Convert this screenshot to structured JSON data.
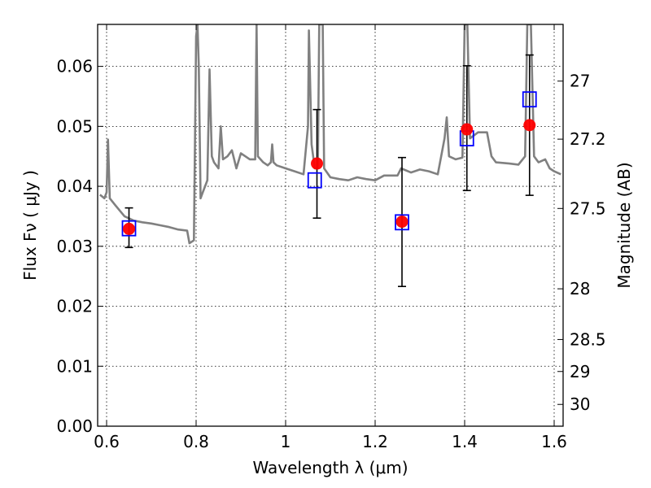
{
  "chart_data": {
    "type": "scatter",
    "xlabel": "Wavelength  λ (μm)",
    "ylabel": "Flux  Fν  ( μJy )",
    "ylabel_right": "Magnitude (AB)",
    "xlim": [
      0.58,
      1.62
    ],
    "ylim": [
      0.0,
      0.067
    ],
    "grid": true,
    "grid_style": "dotted",
    "x_ticks": [
      0.6,
      0.8,
      1.0,
      1.2,
      1.4,
      1.6
    ],
    "x_tick_labels": [
      "0.6",
      "0.8",
      "1",
      "1.2",
      "1.4",
      "1.6"
    ],
    "y_ticks": [
      0.0,
      0.01,
      0.02,
      0.03,
      0.04,
      0.05,
      0.06
    ],
    "y_tick_labels": [
      "0.00",
      "0.01",
      "0.02",
      "0.03",
      "0.04",
      "0.05",
      "0.06"
    ],
    "mag_ticks": [
      27,
      27.2,
      27.5,
      28,
      28.5,
      29,
      30
    ],
    "mag_tick_labels": [
      "27",
      "27.2",
      "27.5",
      "28",
      "28.5",
      "29",
      "30"
    ],
    "series": [
      {
        "kind": "observed",
        "color": "#ff0000",
        "points": [
          {
            "x": 0.65,
            "y": 0.0329,
            "yerr_low": 0.0298,
            "yerr_high": 0.0364
          },
          {
            "x": 1.07,
            "y": 0.0438,
            "yerr_low": 0.0347,
            "yerr_high": 0.0528
          },
          {
            "x": 1.26,
            "y": 0.0341,
            "yerr_low": 0.0233,
            "yerr_high": 0.0448
          },
          {
            "x": 1.405,
            "y": 0.0495,
            "yerr_low": 0.0393,
            "yerr_high": 0.0601
          },
          {
            "x": 1.545,
            "y": 0.0502,
            "yerr_low": 0.0385,
            "yerr_high": 0.0619
          }
        ]
      },
      {
        "kind": "model",
        "color": "#0000ff",
        "marker": "open-square",
        "points": [
          {
            "x": 0.65,
            "y": 0.033
          },
          {
            "x": 1.065,
            "y": 0.041
          },
          {
            "x": 1.26,
            "y": 0.034
          },
          {
            "x": 1.405,
            "y": 0.048
          },
          {
            "x": 1.545,
            "y": 0.0545
          }
        ]
      },
      {
        "kind": "sed",
        "color": "#808080",
        "line": [
          [
            0.585,
            0.0386
          ],
          [
            0.595,
            0.038
          ],
          [
            0.6,
            0.039
          ],
          [
            0.603,
            0.0478
          ],
          [
            0.607,
            0.038
          ],
          [
            0.62,
            0.0368
          ],
          [
            0.64,
            0.035
          ],
          [
            0.66,
            0.0343
          ],
          [
            0.68,
            0.034
          ],
          [
            0.7,
            0.0338
          ],
          [
            0.72,
            0.0335
          ],
          [
            0.74,
            0.0332
          ],
          [
            0.76,
            0.0328
          ],
          [
            0.78,
            0.0326
          ],
          [
            0.785,
            0.0305
          ],
          [
            0.795,
            0.031
          ],
          [
            0.8,
            0.065
          ],
          [
            0.803,
            0.067
          ],
          [
            0.806,
            0.06
          ],
          [
            0.81,
            0.038
          ],
          [
            0.815,
            0.039
          ],
          [
            0.82,
            0.04
          ],
          [
            0.825,
            0.041
          ],
          [
            0.83,
            0.0595
          ],
          [
            0.835,
            0.045
          ],
          [
            0.84,
            0.044
          ],
          [
            0.85,
            0.043
          ],
          [
            0.855,
            0.05
          ],
          [
            0.86,
            0.0445
          ],
          [
            0.87,
            0.045
          ],
          [
            0.88,
            0.046
          ],
          [
            0.89,
            0.043
          ],
          [
            0.9,
            0.0455
          ],
          [
            0.91,
            0.045
          ],
          [
            0.92,
            0.0445
          ],
          [
            0.932,
            0.0445
          ],
          [
            0.935,
            0.067
          ],
          [
            0.938,
            0.045
          ],
          [
            0.95,
            0.044
          ],
          [
            0.96,
            0.0435
          ],
          [
            0.967,
            0.044
          ],
          [
            0.97,
            0.047
          ],
          [
            0.973,
            0.044
          ],
          [
            0.98,
            0.0435
          ],
          [
            1.0,
            0.043
          ],
          [
            1.02,
            0.0425
          ],
          [
            1.04,
            0.042
          ],
          [
            1.05,
            0.05
          ],
          [
            1.052,
            0.066
          ],
          [
            1.058,
            0.047
          ],
          [
            1.065,
            0.043
          ],
          [
            1.072,
            0.043
          ],
          [
            1.075,
            0.067
          ],
          [
            1.083,
            0.067
          ],
          [
            1.086,
            0.043
          ],
          [
            1.1,
            0.0415
          ],
          [
            1.12,
            0.0412
          ],
          [
            1.14,
            0.041
          ],
          [
            1.16,
            0.0415
          ],
          [
            1.18,
            0.0412
          ],
          [
            1.2,
            0.041
          ],
          [
            1.22,
            0.0418
          ],
          [
            1.25,
            0.0418
          ],
          [
            1.258,
            0.043
          ],
          [
            1.28,
            0.0423
          ],
          [
            1.3,
            0.0428
          ],
          [
            1.32,
            0.0425
          ],
          [
            1.34,
            0.042
          ],
          [
            1.355,
            0.048
          ],
          [
            1.36,
            0.0515
          ],
          [
            1.365,
            0.045
          ],
          [
            1.38,
            0.0445
          ],
          [
            1.395,
            0.0448
          ],
          [
            1.4,
            0.067
          ],
          [
            1.406,
            0.067
          ],
          [
            1.412,
            0.048
          ],
          [
            1.43,
            0.049
          ],
          [
            1.45,
            0.049
          ],
          [
            1.46,
            0.045
          ],
          [
            1.47,
            0.044
          ],
          [
            1.5,
            0.0438
          ],
          [
            1.52,
            0.0436
          ],
          [
            1.535,
            0.045
          ],
          [
            1.54,
            0.067
          ],
          [
            1.548,
            0.067
          ],
          [
            1.555,
            0.045
          ],
          [
            1.565,
            0.044
          ],
          [
            1.58,
            0.0445
          ],
          [
            1.59,
            0.043
          ],
          [
            1.6,
            0.0425
          ],
          [
            1.615,
            0.042
          ]
        ]
      }
    ]
  }
}
